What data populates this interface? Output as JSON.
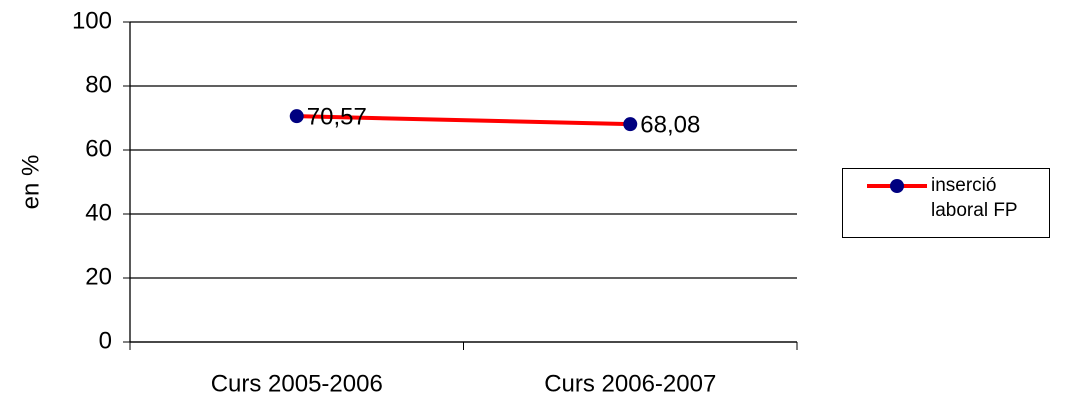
{
  "chart_data": {
    "type": "line",
    "categories": [
      "Curs 2005-2006",
      "Curs 2006-2007"
    ],
    "series": [
      {
        "name": "inserció laboral FP",
        "color": "#ff0000",
        "marker_color": "#000080",
        "values": [
          70.57,
          68.08
        ],
        "value_labels": [
          "70,57",
          "68,08"
        ]
      }
    ],
    "ylabel": "en %",
    "ylim": [
      0,
      100
    ],
    "yticks": [
      0,
      20,
      40,
      60,
      80,
      100
    ],
    "grid": true,
    "legend": "right"
  }
}
